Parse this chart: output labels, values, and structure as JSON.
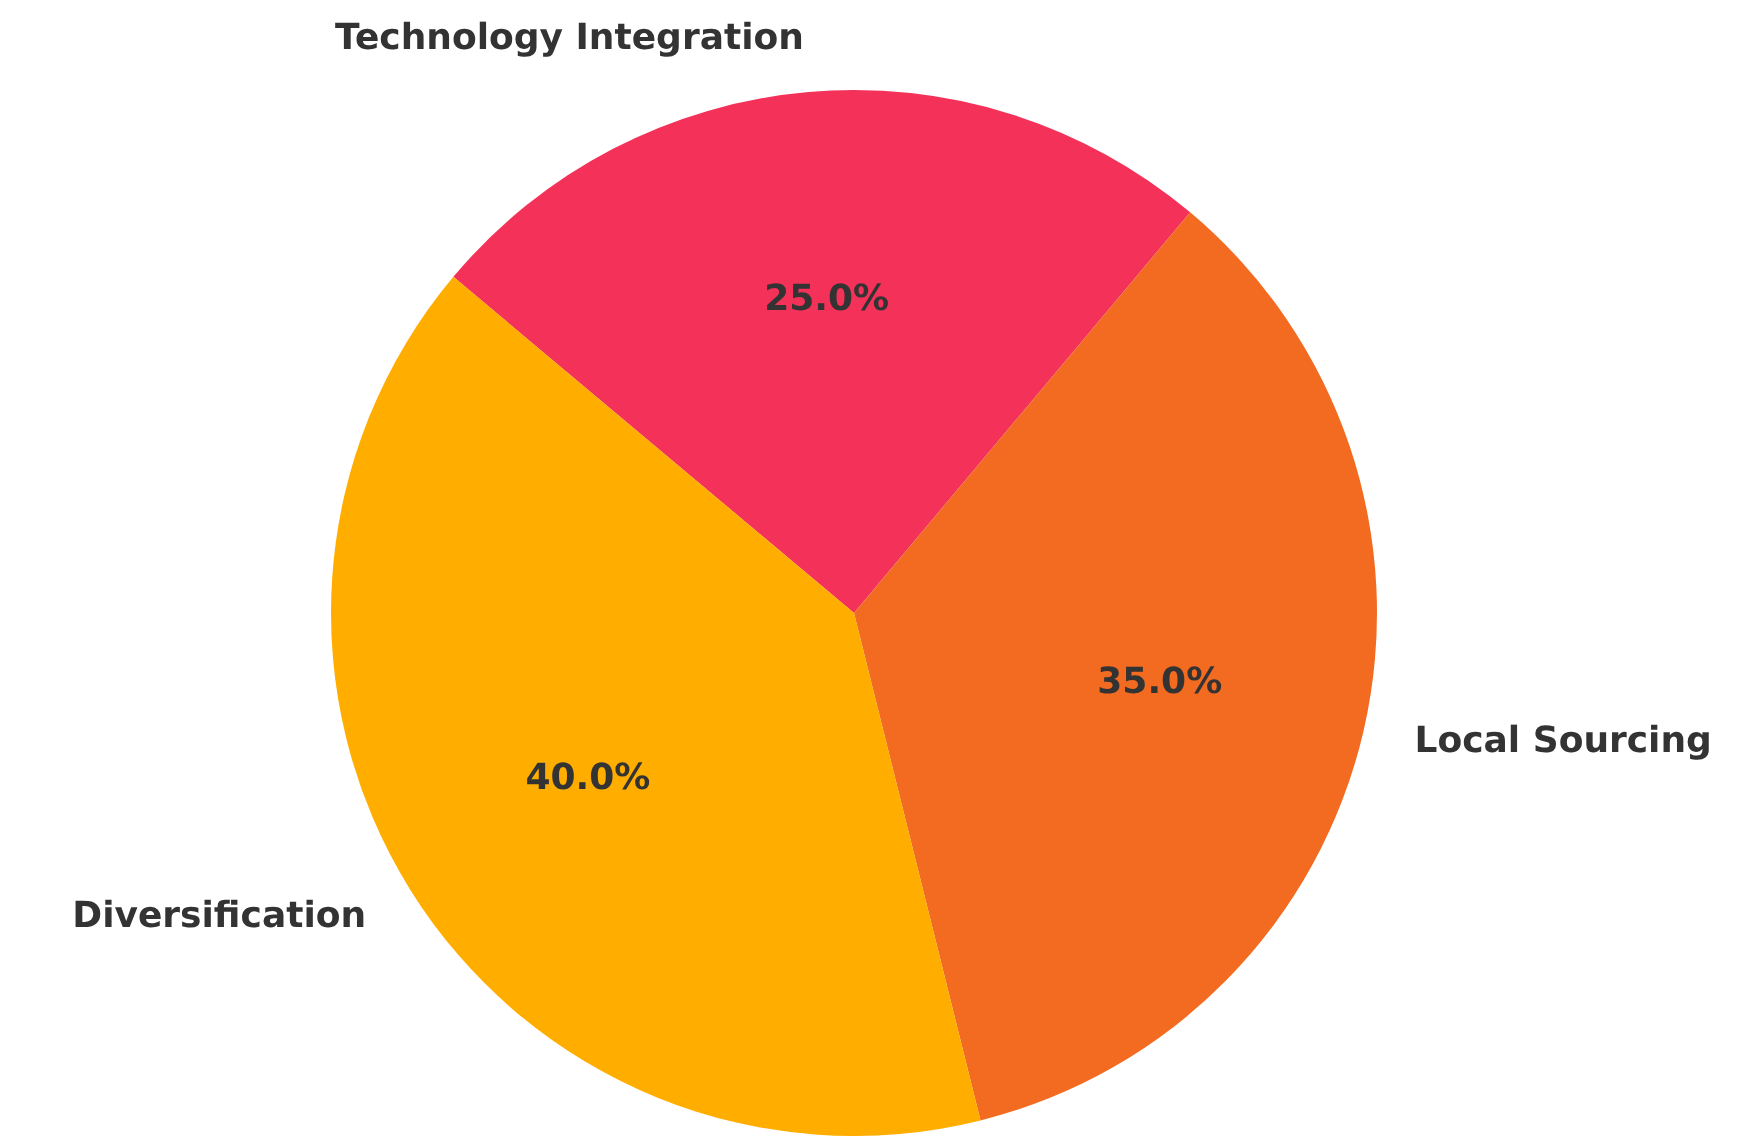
{
  "chart_data": {
    "type": "pie",
    "categories": [
      "Technology Integration",
      "Local Sourcing",
      "Diversification"
    ],
    "values": [
      25,
      35,
      40
    ],
    "value_labels": [
      "25.0%",
      "35.0%",
      "40.0%"
    ],
    "colors": [
      "#f43159",
      "#f26b21",
      "#ffae00"
    ],
    "legend": false
  }
}
